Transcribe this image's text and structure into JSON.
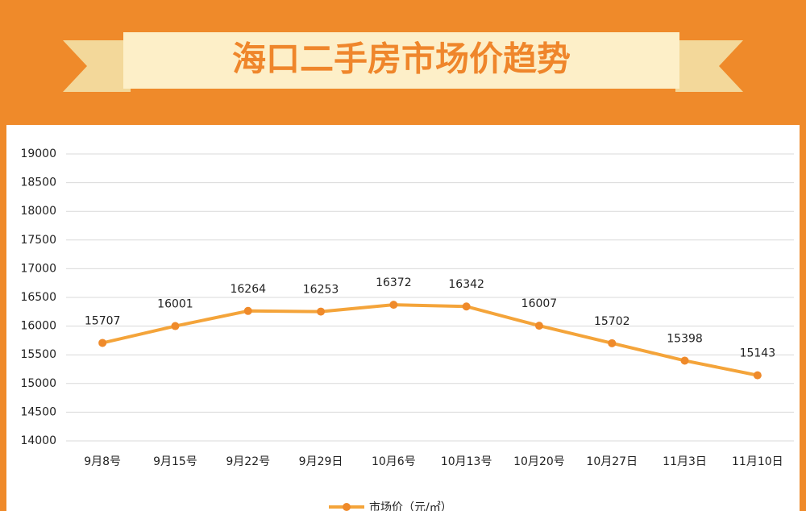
{
  "chart_data": {
    "type": "line",
    "title": "海口二手房市场价趋势",
    "categories": [
      "9月8号",
      "9月15号",
      "9月22号",
      "9月29日",
      "10月6号",
      "10月13号",
      "10月20号",
      "10月27日",
      "11月3日",
      "11月10日"
    ],
    "series": [
      {
        "name": "市场价（元/㎡）",
        "color": "#f4a43a",
        "marker_color": "#ef8a2a",
        "values": [
          15707,
          16001,
          16264,
          16253,
          16372,
          16342,
          16007,
          15702,
          15398,
          15143
        ]
      }
    ],
    "ylim": [
      14000,
      19000
    ],
    "yticks": [
      14000,
      14500,
      15000,
      15500,
      16000,
      16500,
      17000,
      17500,
      18000,
      18500,
      19000
    ],
    "grid": true
  }
}
